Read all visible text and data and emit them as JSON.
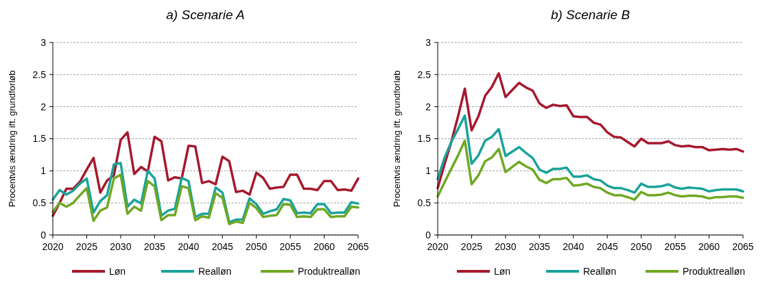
{
  "chart_data": [
    {
      "type": "line",
      "title": "a) Scenarie A",
      "ylabel": "Procentvis ændring ift. grundforløb",
      "x": [
        2020,
        2021,
        2022,
        2023,
        2024,
        2025,
        2026,
        2027,
        2028,
        2029,
        2030,
        2031,
        2032,
        2033,
        2034,
        2035,
        2036,
        2037,
        2038,
        2039,
        2040,
        2041,
        2042,
        2043,
        2044,
        2045,
        2046,
        2047,
        2048,
        2049,
        2050,
        2051,
        2052,
        2053,
        2054,
        2055,
        2056,
        2057,
        2058,
        2059,
        2060,
        2061,
        2062,
        2063,
        2064,
        2065
      ],
      "series": [
        {
          "name": "Løn",
          "color": "#a6192e",
          "values": [
            0.3,
            0.5,
            0.72,
            0.72,
            0.83,
            1.02,
            1.2,
            0.66,
            0.85,
            0.93,
            1.48,
            1.6,
            0.95,
            1.06,
            0.99,
            1.53,
            1.46,
            0.85,
            0.9,
            0.88,
            1.39,
            1.38,
            0.81,
            0.84,
            0.79,
            1.22,
            1.15,
            0.67,
            0.69,
            0.63,
            0.97,
            0.89,
            0.72,
            0.74,
            0.75,
            0.94,
            0.94,
            0.72,
            0.72,
            0.7,
            0.84,
            0.84,
            0.7,
            0.71,
            0.69,
            0.88
          ]
        },
        {
          "name": "Realløn",
          "color": "#1aa39a",
          "values": [
            0.55,
            0.7,
            0.63,
            0.69,
            0.8,
            0.88,
            0.35,
            0.53,
            0.62,
            1.1,
            1.12,
            0.44,
            0.55,
            0.49,
            1.0,
            0.88,
            0.3,
            0.38,
            0.41,
            0.89,
            0.84,
            0.28,
            0.33,
            0.33,
            0.74,
            0.66,
            0.2,
            0.24,
            0.24,
            0.57,
            0.48,
            0.33,
            0.37,
            0.4,
            0.56,
            0.54,
            0.34,
            0.35,
            0.34,
            0.48,
            0.48,
            0.34,
            0.35,
            0.35,
            0.51,
            0.49
          ]
        },
        {
          "name": "Produktrealløn",
          "color": "#6fa823",
          "values": [
            0.36,
            0.5,
            0.44,
            0.5,
            0.62,
            0.73,
            0.22,
            0.38,
            0.43,
            0.88,
            0.94,
            0.33,
            0.44,
            0.38,
            0.84,
            0.76,
            0.23,
            0.31,
            0.31,
            0.76,
            0.73,
            0.23,
            0.29,
            0.27,
            0.65,
            0.58,
            0.17,
            0.21,
            0.19,
            0.5,
            0.42,
            0.28,
            0.3,
            0.31,
            0.48,
            0.47,
            0.28,
            0.29,
            0.28,
            0.4,
            0.4,
            0.28,
            0.29,
            0.29,
            0.44,
            0.43
          ]
        }
      ],
      "xlim": [
        2020,
        2065
      ],
      "xticks": [
        2020,
        2025,
        2030,
        2035,
        2040,
        2045,
        2050,
        2055,
        2060,
        2065
      ],
      "ylim": [
        0,
        3
      ],
      "yticks": [
        0,
        0.5,
        1,
        1.5,
        2,
        2.5,
        3
      ],
      "grid": "y",
      "legend": "bottom",
      "marker": "none",
      "line_style": "solid"
    },
    {
      "type": "line",
      "title": "b) Scenarie B",
      "ylabel": "Procentvis ændring ift. grundforløb",
      "x": [
        2020,
        2021,
        2022,
        2023,
        2024,
        2025,
        2026,
        2027,
        2028,
        2029,
        2030,
        2031,
        2032,
        2033,
        2034,
        2035,
        2036,
        2037,
        2038,
        2039,
        2040,
        2041,
        2042,
        2043,
        2044,
        2045,
        2046,
        2047,
        2048,
        2049,
        2050,
        2051,
        2052,
        2053,
        2054,
        2055,
        2056,
        2057,
        2058,
        2059,
        2060,
        2061,
        2062,
        2063,
        2064,
        2065
      ],
      "series": [
        {
          "name": "Løn",
          "color": "#a6192e",
          "values": [
            0.73,
            1.1,
            1.45,
            1.85,
            2.28,
            1.63,
            1.85,
            2.17,
            2.31,
            2.52,
            2.15,
            2.26,
            2.37,
            2.3,
            2.25,
            2.05,
            1.98,
            2.03,
            2.01,
            2.02,
            1.85,
            1.84,
            1.84,
            1.75,
            1.72,
            1.6,
            1.53,
            1.52,
            1.45,
            1.38,
            1.5,
            1.43,
            1.43,
            1.43,
            1.46,
            1.4,
            1.38,
            1.39,
            1.37,
            1.37,
            1.32,
            1.33,
            1.34,
            1.33,
            1.34,
            1.3
          ]
        },
        {
          "name": "Realløn",
          "color": "#1aa39a",
          "values": [
            0.87,
            1.2,
            1.45,
            1.65,
            1.86,
            1.11,
            1.24,
            1.47,
            1.53,
            1.65,
            1.23,
            1.3,
            1.37,
            1.28,
            1.2,
            1.02,
            0.97,
            1.03,
            1.03,
            1.05,
            0.91,
            0.91,
            0.93,
            0.87,
            0.85,
            0.77,
            0.73,
            0.73,
            0.7,
            0.66,
            0.8,
            0.75,
            0.75,
            0.76,
            0.79,
            0.74,
            0.72,
            0.74,
            0.73,
            0.72,
            0.68,
            0.7,
            0.71,
            0.71,
            0.71,
            0.68
          ]
        },
        {
          "name": "Produktrealløn",
          "color": "#6fa823",
          "values": [
            0.6,
            0.82,
            1.03,
            1.24,
            1.47,
            0.79,
            0.93,
            1.15,
            1.21,
            1.34,
            0.98,
            1.06,
            1.14,
            1.07,
            1.02,
            0.86,
            0.81,
            0.87,
            0.87,
            0.89,
            0.77,
            0.78,
            0.8,
            0.75,
            0.73,
            0.66,
            0.62,
            0.62,
            0.59,
            0.55,
            0.67,
            0.62,
            0.62,
            0.63,
            0.66,
            0.62,
            0.6,
            0.61,
            0.61,
            0.6,
            0.57,
            0.59,
            0.59,
            0.6,
            0.6,
            0.58
          ]
        }
      ],
      "xlim": [
        2020,
        2065
      ],
      "xticks": [
        2020,
        2025,
        2030,
        2035,
        2040,
        2045,
        2050,
        2055,
        2060,
        2065
      ],
      "ylim": [
        0,
        3
      ],
      "yticks": [
        0,
        0.5,
        1,
        1.5,
        2,
        2.5,
        3
      ],
      "grid": "y",
      "legend": "bottom",
      "marker": "none",
      "line_style": "solid"
    }
  ]
}
